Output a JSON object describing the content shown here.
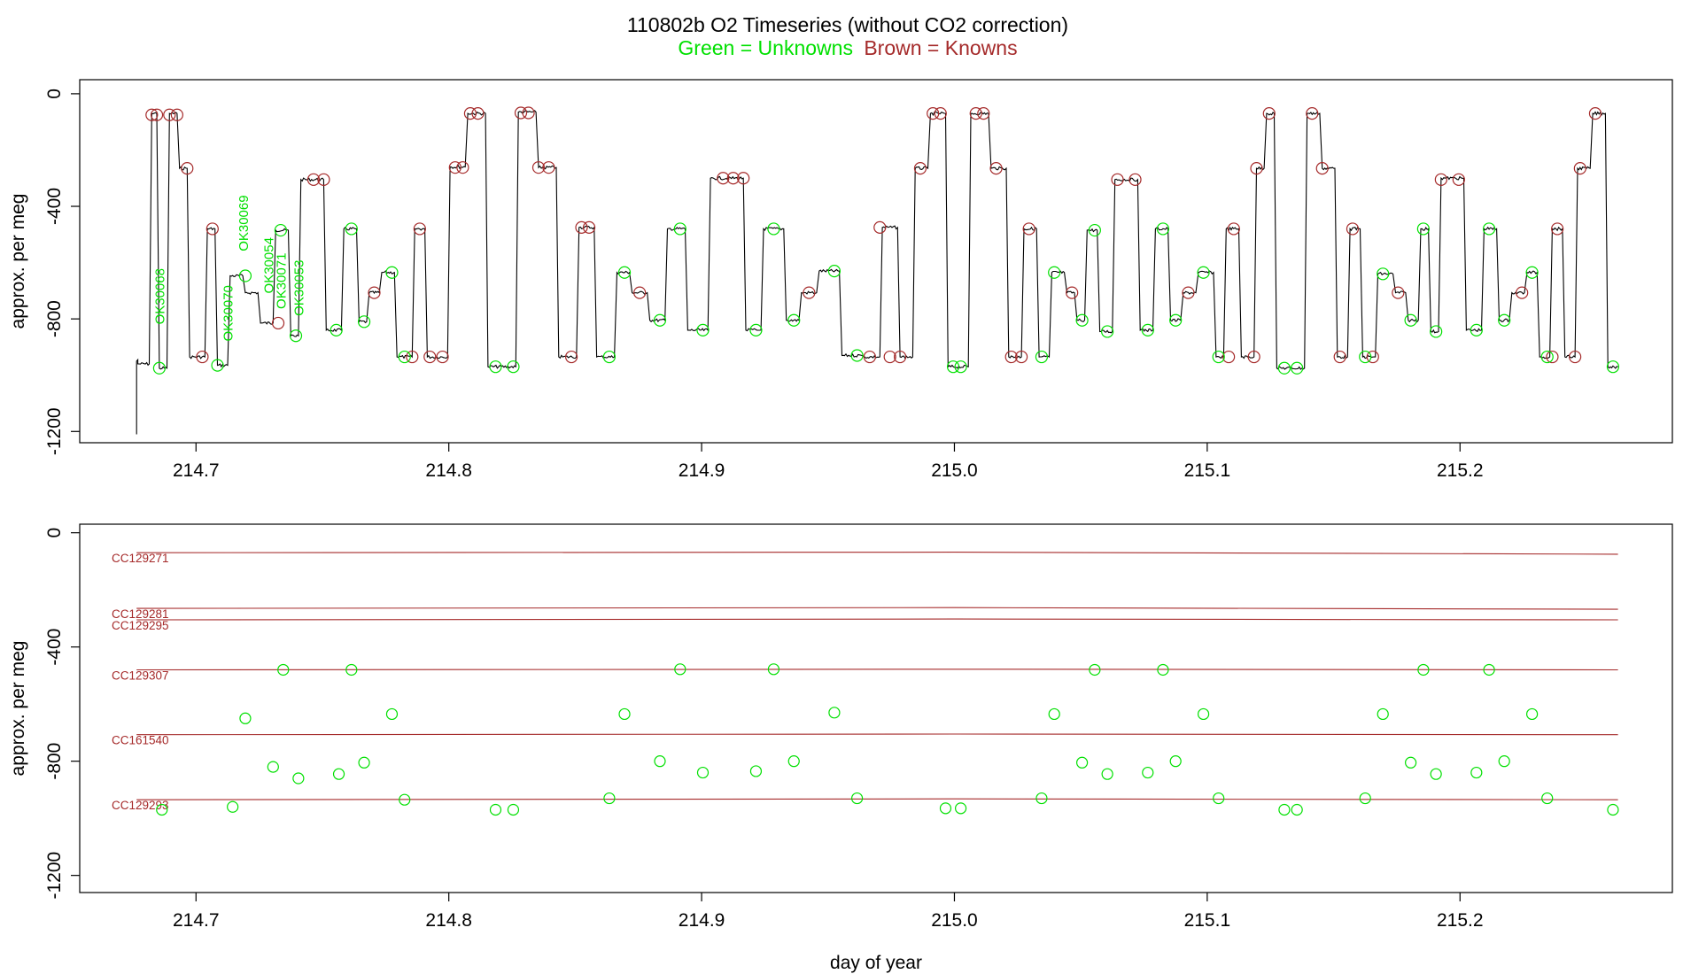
{
  "title": {
    "text": "110802b   O2 Timeseries (without CO2 correction)",
    "subtitle_green": "Green = Unknowns",
    "subtitle_brown": "Brown = Knowns"
  },
  "colors": {
    "unknown": "#00e000",
    "known": "#a52a2a",
    "trace": "#000000",
    "axis": "#000000"
  },
  "chart_data": [
    {
      "type": "line",
      "panel": "top",
      "title": "",
      "xlabel": "",
      "ylabel": "approx. per meg",
      "xlim": [
        214.654,
        215.284
      ],
      "ylim": [
        -1240,
        50
      ],
      "xticks": [
        214.7,
        214.8,
        214.9,
        215.0,
        215.1,
        215.2
      ],
      "xtick_labels": [
        "214.7",
        "214.8",
        "214.9",
        "215.0",
        "215.1",
        "215.2"
      ],
      "yticks": [
        0,
        -400,
        -800,
        -1200
      ],
      "ytick_labels": [
        "0",
        "-400",
        "-800",
        "-1200"
      ],
      "trace_start": [
        [
          214.6765,
          -1210
        ],
        [
          214.6765,
          -950
        ],
        [
          214.677,
          -945
        ]
      ],
      "segments": [
        [
          214.677,
          214.6815,
          -960
        ],
        [
          214.6825,
          214.6845,
          -70
        ],
        [
          214.6855,
          214.6885,
          -975
        ],
        [
          214.6895,
          214.6925,
          -70
        ],
        [
          214.6935,
          214.6965,
          -265
        ],
        [
          214.6975,
          214.7035,
          -935
        ],
        [
          214.7045,
          214.7075,
          -480
        ],
        [
          214.7085,
          214.7125,
          -965
        ],
        [
          214.7135,
          214.7185,
          -647
        ],
        [
          214.7195,
          214.7245,
          -707
        ],
        [
          214.7255,
          214.7305,
          -815
        ],
        [
          214.7315,
          214.7365,
          -485
        ],
        [
          214.7375,
          214.7405,
          -860
        ],
        [
          214.7415,
          214.7505,
          -305
        ],
        [
          214.7515,
          214.7575,
          -840
        ],
        [
          214.7585,
          214.7635,
          -480
        ],
        [
          214.7645,
          214.7675,
          -810
        ],
        [
          214.7685,
          214.7725,
          -707
        ],
        [
          214.7735,
          214.7785,
          -635
        ],
        [
          214.7795,
          214.7855,
          -935
        ],
        [
          214.7865,
          214.7905,
          -480
        ],
        [
          214.7915,
          214.7995,
          -935
        ],
        [
          214.8005,
          214.8065,
          -260
        ],
        [
          214.8075,
          214.8145,
          -70
        ],
        [
          214.8155,
          214.8265,
          -970
        ],
        [
          214.8275,
          214.8345,
          -65
        ],
        [
          214.8355,
          214.8425,
          -262
        ],
        [
          214.8435,
          214.8505,
          -935
        ],
        [
          214.8515,
          214.8575,
          -475
        ],
        [
          214.8585,
          214.8655,
          -935
        ],
        [
          214.8665,
          214.8715,
          -635
        ],
        [
          214.8725,
          214.8785,
          -707
        ],
        [
          214.8795,
          214.8855,
          -805
        ],
        [
          214.8865,
          214.8935,
          -480
        ],
        [
          214.8945,
          214.9025,
          -840
        ],
        [
          214.9035,
          214.9165,
          -300
        ],
        [
          214.9175,
          214.9235,
          -840
        ],
        [
          214.9245,
          214.9325,
          -480
        ],
        [
          214.9335,
          214.9385,
          -805
        ],
        [
          214.9395,
          214.9455,
          -707
        ],
        [
          214.9465,
          214.9545,
          -630
        ],
        [
          214.9555,
          214.9635,
          -930
        ],
        [
          214.9645,
          214.9705,
          -935
        ],
        [
          214.9715,
          214.9775,
          -475
        ],
        [
          214.9785,
          214.9835,
          -935
        ],
        [
          214.9845,
          214.9895,
          -265
        ],
        [
          214.9905,
          214.9965,
          -70
        ],
        [
          214.9975,
          215.0055,
          -970
        ],
        [
          215.0065,
          215.0135,
          -70
        ],
        [
          215.0145,
          215.0205,
          -265
        ],
        [
          215.0215,
          215.0265,
          -935
        ],
        [
          215.0275,
          215.0325,
          -480
        ],
        [
          215.0335,
          215.0375,
          -935
        ],
        [
          215.0385,
          215.0435,
          -635
        ],
        [
          215.0445,
          215.0475,
          -707
        ],
        [
          215.0485,
          215.0515,
          -805
        ],
        [
          215.0525,
          215.0565,
          -485
        ],
        [
          215.0575,
          215.0625,
          -845
        ],
        [
          215.0635,
          215.0725,
          -305
        ],
        [
          215.0735,
          215.0785,
          -840
        ],
        [
          215.0795,
          215.0845,
          -480
        ],
        [
          215.0855,
          215.0895,
          -805
        ],
        [
          215.0905,
          215.0955,
          -707
        ],
        [
          215.0965,
          215.1025,
          -635
        ],
        [
          215.1035,
          215.1065,
          -935
        ],
        [
          215.1075,
          215.1125,
          -480
        ],
        [
          215.1135,
          215.1185,
          -935
        ],
        [
          215.1195,
          215.1225,
          -265
        ],
        [
          215.1235,
          215.1265,
          -70
        ],
        [
          215.1275,
          215.1385,
          -975
        ],
        [
          215.1395,
          215.1445,
          -70
        ],
        [
          215.1455,
          215.1505,
          -265
        ],
        [
          215.1515,
          215.1555,
          -935
        ],
        [
          215.1565,
          215.1605,
          -480
        ],
        [
          215.1615,
          215.1665,
          -935
        ],
        [
          215.1675,
          215.1735,
          -640
        ],
        [
          215.1745,
          215.1785,
          -707
        ],
        [
          215.1795,
          215.1835,
          -805
        ],
        [
          215.1845,
          215.1875,
          -480
        ],
        [
          215.1885,
          215.1915,
          -845
        ],
        [
          215.1925,
          215.2015,
          -300
        ],
        [
          215.2025,
          215.2085,
          -840
        ],
        [
          215.2095,
          215.2145,
          -480
        ],
        [
          215.2155,
          215.2195,
          -805
        ],
        [
          215.2205,
          215.2255,
          -707
        ],
        [
          215.2265,
          215.2305,
          -635
        ],
        [
          215.2315,
          215.2355,
          -935
        ],
        [
          215.2365,
          215.2405,
          -480
        ],
        [
          215.2415,
          215.2455,
          -935
        ],
        [
          215.2465,
          215.2515,
          -265
        ],
        [
          215.2525,
          215.2575,
          -70
        ],
        [
          215.2585,
          215.2625,
          -970
        ]
      ],
      "known_points": [
        [
          214.6825,
          -75
        ],
        [
          214.6845,
          -75
        ],
        [
          214.6895,
          -75
        ],
        [
          214.6925,
          -75
        ],
        [
          214.6965,
          -265
        ],
        [
          214.7025,
          -935
        ],
        [
          214.7065,
          -480
        ],
        [
          214.7325,
          -815
        ],
        [
          214.7465,
          -305
        ],
        [
          214.7505,
          -305
        ],
        [
          214.7705,
          -707
        ],
        [
          214.7855,
          -935
        ],
        [
          214.7885,
          -480
        ],
        [
          214.7925,
          -935
        ],
        [
          214.7975,
          -935
        ],
        [
          214.8025,
          -262
        ],
        [
          214.8055,
          -262
        ],
        [
          214.8085,
          -70
        ],
        [
          214.8115,
          -70
        ],
        [
          214.8285,
          -68
        ],
        [
          214.8315,
          -68
        ],
        [
          214.8355,
          -262
        ],
        [
          214.8395,
          -262
        ],
        [
          214.8485,
          -935
        ],
        [
          214.8525,
          -475
        ],
        [
          214.8555,
          -475
        ],
        [
          214.8755,
          -707
        ],
        [
          214.9085,
          -300
        ],
        [
          214.9125,
          -300
        ],
        [
          214.9165,
          -300
        ],
        [
          214.9425,
          -707
        ],
        [
          214.9665,
          -935
        ],
        [
          214.9705,
          -475
        ],
        [
          214.9745,
          -935
        ],
        [
          214.9785,
          -935
        ],
        [
          214.9865,
          -265
        ],
        [
          214.9915,
          -70
        ],
        [
          214.9945,
          -70
        ],
        [
          215.0085,
          -70
        ],
        [
          215.0115,
          -70
        ],
        [
          215.0165,
          -265
        ],
        [
          215.0225,
          -935
        ],
        [
          215.0265,
          -935
        ],
        [
          215.0295,
          -480
        ],
        [
          215.0465,
          -707
        ],
        [
          215.0645,
          -305
        ],
        [
          215.0715,
          -305
        ],
        [
          215.0925,
          -707
        ],
        [
          215.1085,
          -935
        ],
        [
          215.1105,
          -480
        ],
        [
          215.1185,
          -935
        ],
        [
          215.1195,
          -265
        ],
        [
          215.1245,
          -70
        ],
        [
          215.1415,
          -70
        ],
        [
          215.1455,
          -265
        ],
        [
          215.1525,
          -935
        ],
        [
          215.1575,
          -480
        ],
        [
          215.1655,
          -935
        ],
        [
          215.1755,
          -707
        ],
        [
          215.1925,
          -305
        ],
        [
          215.1995,
          -305
        ],
        [
          215.2245,
          -707
        ],
        [
          215.2365,
          -935
        ],
        [
          215.2385,
          -480
        ],
        [
          215.2455,
          -935
        ],
        [
          215.2475,
          -265
        ],
        [
          215.2535,
          -70
        ]
      ],
      "unknown_points": [
        [
          214.6855,
          -975
        ],
        [
          214.7085,
          -965
        ],
        [
          214.7195,
          -647
        ],
        [
          214.7335,
          -485
        ],
        [
          214.7395,
          -860
        ],
        [
          214.7555,
          -840
        ],
        [
          214.7615,
          -480
        ],
        [
          214.7665,
          -810
        ],
        [
          214.7775,
          -635
        ],
        [
          214.7825,
          -935
        ],
        [
          214.8185,
          -970
        ],
        [
          214.8255,
          -970
        ],
        [
          214.8635,
          -935
        ],
        [
          214.8695,
          -635
        ],
        [
          214.8835,
          -805
        ],
        [
          214.8915,
          -480
        ],
        [
          214.9005,
          -840
        ],
        [
          214.9215,
          -840
        ],
        [
          214.9285,
          -480
        ],
        [
          214.9365,
          -805
        ],
        [
          214.9525,
          -630
        ],
        [
          214.9615,
          -930
        ],
        [
          214.9995,
          -970
        ],
        [
          215.0025,
          -970
        ],
        [
          215.0345,
          -935
        ],
        [
          215.0395,
          -635
        ],
        [
          215.0505,
          -805
        ],
        [
          215.0555,
          -485
        ],
        [
          215.0605,
          -845
        ],
        [
          215.0765,
          -840
        ],
        [
          215.0825,
          -480
        ],
        [
          215.0875,
          -805
        ],
        [
          215.0985,
          -635
        ],
        [
          215.1045,
          -935
        ],
        [
          215.1305,
          -975
        ],
        [
          215.1355,
          -975
        ],
        [
          215.1625,
          -935
        ],
        [
          215.1695,
          -640
        ],
        [
          215.1805,
          -805
        ],
        [
          215.1855,
          -480
        ],
        [
          215.1905,
          -845
        ],
        [
          215.2065,
          -840
        ],
        [
          215.2115,
          -480
        ],
        [
          215.2175,
          -805
        ],
        [
          215.2285,
          -635
        ],
        [
          215.2345,
          -935
        ],
        [
          215.2605,
          -970
        ]
      ],
      "annotations": [
        {
          "text": "OK30068",
          "x": 214.6875,
          "y": -720
        },
        {
          "text": "OK30070",
          "x": 214.7145,
          "y": -780
        },
        {
          "text": "OK30069",
          "x": 214.7205,
          "y": -460
        },
        {
          "text": "OK30054",
          "x": 214.7305,
          "y": -610
        },
        {
          "text": "OK30071",
          "x": 214.7355,
          "y": -665
        },
        {
          "text": "OK30053",
          "x": 214.7425,
          "y": -690
        }
      ]
    },
    {
      "type": "scatter",
      "panel": "bottom",
      "title": "",
      "xlabel": "day of year",
      "ylabel": "approx. per meg",
      "xlim": [
        214.654,
        215.284
      ],
      "ylim": [
        -1260,
        30
      ],
      "xticks": [
        214.7,
        214.8,
        214.9,
        215.0,
        215.1,
        215.2
      ],
      "xtick_labels": [
        "214.7",
        "214.8",
        "214.9",
        "215.0",
        "215.1",
        "215.2"
      ],
      "yticks": [
        0,
        -400,
        -800,
        -1200
      ],
      "ytick_labels": [
        "0",
        "-400",
        "-800",
        "-1200"
      ],
      "reference_lines": [
        {
          "name": "CC129271",
          "x": [
            214.6765,
            215.0,
            215.2625
          ],
          "y": [
            -70,
            -68,
            -75
          ]
        },
        {
          "name": "CC129281",
          "x": [
            214.6765,
            215.0,
            215.2625
          ],
          "y": [
            -265,
            -262,
            -268
          ]
        },
        {
          "name": "CC129295",
          "x": [
            214.6765,
            215.0,
            215.2625
          ],
          "y": [
            -305,
            -302,
            -305
          ]
        },
        {
          "name": "CC129307",
          "x": [
            214.6765,
            215.0,
            215.2625
          ],
          "y": [
            -480,
            -478,
            -480
          ]
        },
        {
          "name": "CC161540",
          "x": [
            214.6765,
            215.0,
            215.2625
          ],
          "y": [
            -707,
            -705,
            -707
          ]
        },
        {
          "name": "CC129293",
          "x": [
            214.6765,
            215.0,
            215.2625
          ],
          "y": [
            -935,
            -932,
            -935
          ]
        }
      ],
      "points": [
        [
          214.6865,
          -970
        ],
        [
          214.7145,
          -960
        ],
        [
          214.7195,
          -650
        ],
        [
          214.7305,
          -820
        ],
        [
          214.7345,
          -480
        ],
        [
          214.7405,
          -860
        ],
        [
          214.7565,
          -845
        ],
        [
          214.7615,
          -480
        ],
        [
          214.7665,
          -805
        ],
        [
          214.7775,
          -635
        ],
        [
          214.7825,
          -935
        ],
        [
          214.8185,
          -970
        ],
        [
          214.8255,
          -970
        ],
        [
          214.8635,
          -930
        ],
        [
          214.8695,
          -635
        ],
        [
          214.8835,
          -800
        ],
        [
          214.8915,
          -478
        ],
        [
          214.9005,
          -840
        ],
        [
          214.9215,
          -835
        ],
        [
          214.9285,
          -478
        ],
        [
          214.9365,
          -800
        ],
        [
          214.9525,
          -630
        ],
        [
          214.9615,
          -930
        ],
        [
          214.9965,
          -965
        ],
        [
          215.0025,
          -965
        ],
        [
          215.0345,
          -930
        ],
        [
          215.0395,
          -635
        ],
        [
          215.0505,
          -805
        ],
        [
          215.0555,
          -480
        ],
        [
          215.0605,
          -845
        ],
        [
          215.0765,
          -840
        ],
        [
          215.0825,
          -480
        ],
        [
          215.0875,
          -800
        ],
        [
          215.0985,
          -635
        ],
        [
          215.1045,
          -930
        ],
        [
          215.1305,
          -970
        ],
        [
          215.1355,
          -970
        ],
        [
          215.1625,
          -930
        ],
        [
          215.1695,
          -635
        ],
        [
          215.1805,
          -805
        ],
        [
          215.1855,
          -480
        ],
        [
          215.1905,
          -845
        ],
        [
          215.2065,
          -840
        ],
        [
          215.2115,
          -480
        ],
        [
          215.2175,
          -800
        ],
        [
          215.2285,
          -635
        ],
        [
          215.2345,
          -930
        ],
        [
          215.2605,
          -970
        ]
      ]
    }
  ]
}
